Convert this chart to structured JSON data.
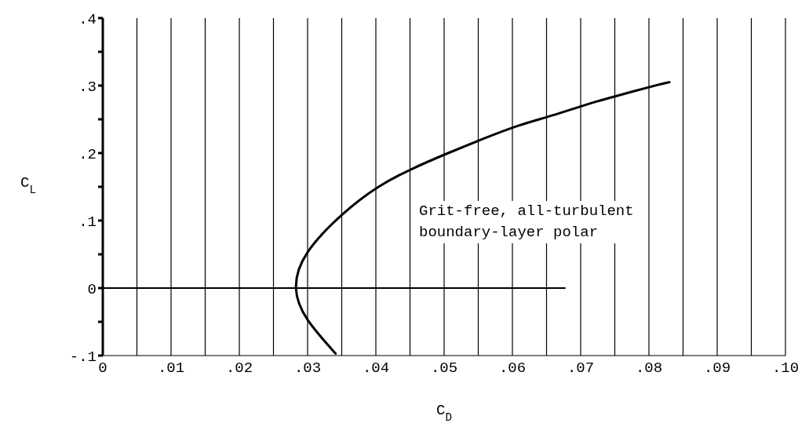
{
  "chart_data": {
    "type": "line",
    "xlabel": "C$_{D}$",
    "ylabel": "C$_{L}$",
    "xlim": [
      0,
      0.1
    ],
    "ylim": [
      -0.1,
      0.4
    ],
    "xticks": [
      {
        "value": 0,
        "label": "0"
      },
      {
        "value": 0.005,
        "label": null
      },
      {
        "value": 0.01,
        "label": ".01"
      },
      {
        "value": 0.015,
        "label": null
      },
      {
        "value": 0.02,
        "label": ".02"
      },
      {
        "value": 0.025,
        "label": null
      },
      {
        "value": 0.03,
        "label": ".03"
      },
      {
        "value": 0.035,
        "label": null
      },
      {
        "value": 0.04,
        "label": ".04"
      },
      {
        "value": 0.045,
        "label": null
      },
      {
        "value": 0.05,
        "label": ".05"
      },
      {
        "value": 0.055,
        "label": null
      },
      {
        "value": 0.06,
        "label": ".06"
      },
      {
        "value": 0.065,
        "label": null
      },
      {
        "value": 0.07,
        "label": ".07"
      },
      {
        "value": 0.075,
        "label": null
      },
      {
        "value": 0.08,
        "label": ".08"
      },
      {
        "value": 0.085,
        "label": null
      },
      {
        "value": 0.09,
        "label": ".09"
      },
      {
        "value": 0.095,
        "label": null
      },
      {
        "value": 0.1,
        "label": ".10"
      }
    ],
    "yticks": [
      {
        "value": -0.1,
        "label": "-.1"
      },
      {
        "value": -0.05,
        "label": null
      },
      {
        "value": 0,
        "label": "0"
      },
      {
        "value": 0.05,
        "label": null
      },
      {
        "value": 0.1,
        "label": ".1"
      },
      {
        "value": 0.15,
        "label": null
      },
      {
        "value": 0.2,
        "label": ".2"
      },
      {
        "value": 0.25,
        "label": null
      },
      {
        "value": 0.3,
        "label": ".3"
      },
      {
        "value": 0.35,
        "label": null
      },
      {
        "value": 0.4,
        "label": ".4"
      }
    ],
    "grid": "x",
    "marker": "none",
    "line_style": "solid",
    "series": [
      {
        "color": "#000000",
        "x": [
          0.0341,
          0.03,
          0.0283,
          0.03,
          0.0352,
          0.0404,
          0.0454,
          0.0506,
          0.0557,
          0.0607,
          0.0659,
          0.0709,
          0.0761,
          0.0813,
          0.083
        ],
        "values": [
          -0.097,
          -0.047,
          0,
          0.053,
          0.11,
          0.15,
          0.177,
          0.2,
          0.221,
          0.24,
          0.256,
          0.272,
          0.287,
          0.301,
          0.305
        ]
      },
      {
        "color": "#000000",
        "x": [
          0,
          0.0677
        ],
        "values": [
          0,
          0
        ]
      }
    ],
    "annotations": [
      "Grit-free, all-turbulent\nboundary-layer polar"
    ]
  }
}
